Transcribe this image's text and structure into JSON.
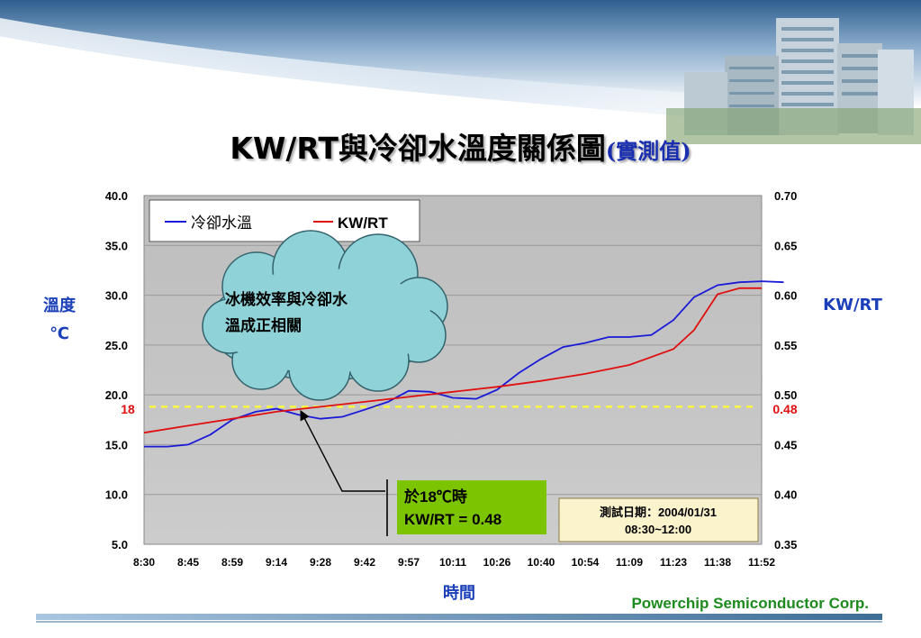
{
  "title": {
    "main": "KW/RT與冷卻水溫度關係圖",
    "sub": "(實測值)"
  },
  "footer": {
    "company": "Powerchip Semiconductor Corp."
  },
  "annotations": {
    "cloud_lines": [
      "冰機效率與冷卻水",
      "溫成正相關"
    ],
    "callout_lines": [
      "於18℃時",
      "KW/RT = 0.48"
    ],
    "date_lines": [
      "測試日期：2004/01/31",
      "08:30~12:00"
    ],
    "ref_left": "18",
    "ref_right": "0.48"
  },
  "colors": {
    "water_temp": "#1a1ad8",
    "kwrt": "#e01010",
    "plot_bg": "#c3c3c3",
    "axis_title": "#1a3fb8",
    "company": "#1c8a1c",
    "callout_bg": "#7cc400",
    "date_bg": "#fbf3cc"
  },
  "chart_data": {
    "type": "line",
    "xlabel": "時間",
    "ylabel_left_lines": [
      "溫度",
      "℃"
    ],
    "ylabel_right": "KW/RT",
    "x_ticks": [
      "8:30",
      "8:45",
      "8:59",
      "9:14",
      "9:28",
      "9:42",
      "9:57",
      "10:11",
      "10:26",
      "10:40",
      "10:54",
      "11:09",
      "11:23",
      "11:38",
      "11:52"
    ],
    "y_left_ticks": [
      "5.0",
      "10.0",
      "15.0",
      "20.0",
      "25.0",
      "30.0",
      "35.0",
      "40.0"
    ],
    "y_right_ticks": [
      "0.35",
      "0.40",
      "0.45",
      "0.50",
      "0.55",
      "0.60",
      "0.65",
      "0.70"
    ],
    "ylim_left": [
      5,
      40
    ],
    "ylim_right": [
      0.35,
      0.7
    ],
    "grid": true,
    "legend": {
      "position": "top-left"
    },
    "reference_line": {
      "y_left": 18.8,
      "y_right": 0.488,
      "style": "dashed",
      "color": "#ffff33"
    },
    "series": [
      {
        "name": "冷卻水溫",
        "axis": "left",
        "color": "#1a1ad8",
        "x": [
          "8:30",
          "8:38",
          "8:45",
          "8:52",
          "8:59",
          "9:07",
          "9:14",
          "9:21",
          "9:28",
          "9:35",
          "9:42",
          "9:50",
          "9:57",
          "10:04",
          "10:11",
          "10:19",
          "10:26",
          "10:33",
          "10:40",
          "10:47",
          "10:54",
          "11:02",
          "11:09",
          "11:16",
          "11:23",
          "11:30",
          "11:38",
          "11:45",
          "11:52",
          "11:59"
        ],
        "values": [
          14.8,
          14.8,
          15.0,
          16.0,
          17.5,
          18.3,
          18.6,
          18.0,
          17.6,
          17.8,
          18.5,
          19.3,
          20.4,
          20.3,
          19.7,
          19.6,
          20.5,
          22.2,
          23.6,
          24.8,
          25.2,
          25.8,
          25.8,
          26.0,
          27.5,
          29.8,
          31.0,
          31.3,
          31.4,
          31.3
        ]
      },
      {
        "name": "KW/RT",
        "axis": "right",
        "color": "#e01010",
        "x": [
          "8:30",
          "8:45",
          "8:59",
          "9:14",
          "9:28",
          "9:42",
          "9:57",
          "10:11",
          "10:26",
          "10:40",
          "10:54",
          "11:09",
          "11:23",
          "11:30",
          "11:38",
          "11:45",
          "11:52",
          "11:59"
        ],
        "values": [
          0.462,
          0.469,
          0.476,
          0.483,
          0.488,
          0.493,
          0.498,
          0.503,
          0.508,
          0.514,
          0.521,
          0.53,
          0.546,
          0.565,
          0.601,
          0.607,
          0.607,
          0.607
        ]
      }
    ]
  }
}
